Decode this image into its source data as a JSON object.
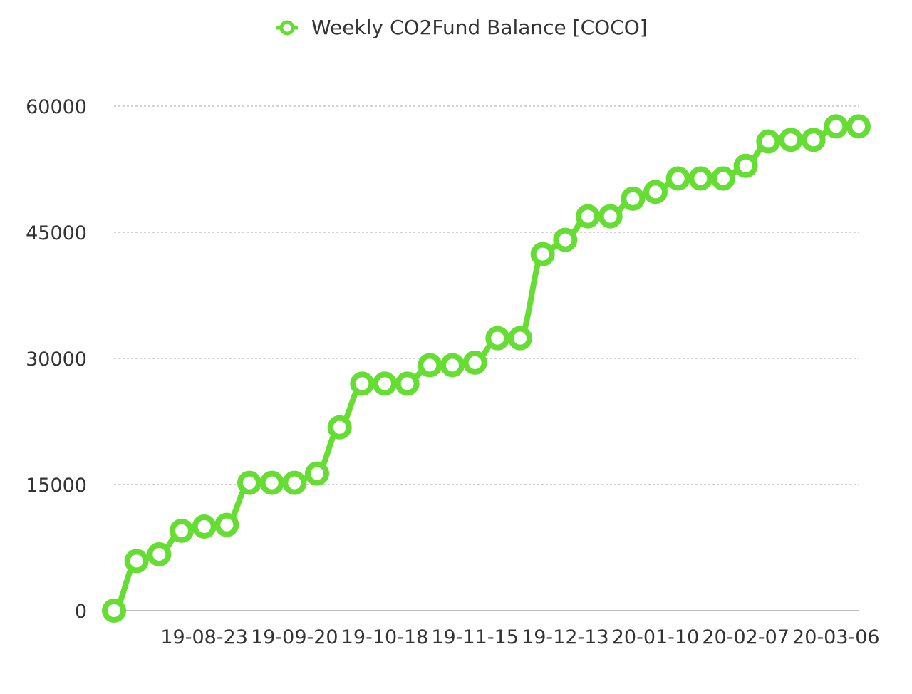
{
  "chart_data": {
    "type": "line",
    "title": "",
    "xlabel": "",
    "ylabel": "",
    "legend": {
      "position": "top-center",
      "entries": [
        "Weekly CO2Fund Balance [COCO]"
      ]
    },
    "grid": true,
    "ylim": [
      0,
      60000
    ],
    "y_ticks": [
      "0",
      "15000",
      "30000",
      "45000",
      "60000"
    ],
    "x": [
      "19-07-26",
      "19-08-02",
      "19-08-09",
      "19-08-16",
      "19-08-23",
      "19-08-30",
      "19-09-06",
      "19-09-13",
      "19-09-20",
      "19-09-27",
      "19-10-04",
      "19-10-11",
      "19-10-18",
      "19-10-25",
      "19-11-01",
      "19-11-08",
      "19-11-15",
      "19-11-22",
      "19-11-29",
      "19-12-06",
      "19-12-13",
      "19-12-20",
      "19-12-27",
      "20-01-03",
      "20-01-10",
      "20-01-17",
      "20-01-24",
      "20-01-31",
      "20-02-07",
      "20-02-14",
      "20-02-21",
      "20-02-28",
      "20-03-06",
      "20-03-13"
    ],
    "x_tick_labels": [
      "19-08-23",
      "19-09-20",
      "19-10-18",
      "19-11-15",
      "19-12-13",
      "20-01-10",
      "20-02-07",
      "20-03-06"
    ],
    "series": [
      {
        "name": "Weekly CO2Fund Balance [COCO]",
        "color": "#66dd33",
        "values": [
          0,
          5900,
          6700,
          9500,
          10000,
          10200,
          15200,
          15200,
          15200,
          16300,
          21800,
          27000,
          27000,
          27000,
          29200,
          29200,
          29500,
          32400,
          32400,
          42400,
          44100,
          46900,
          46900,
          49000,
          49800,
          51400,
          51400,
          51400,
          52900,
          55800,
          56000,
          56000,
          57600,
          57600
        ]
      }
    ]
  }
}
